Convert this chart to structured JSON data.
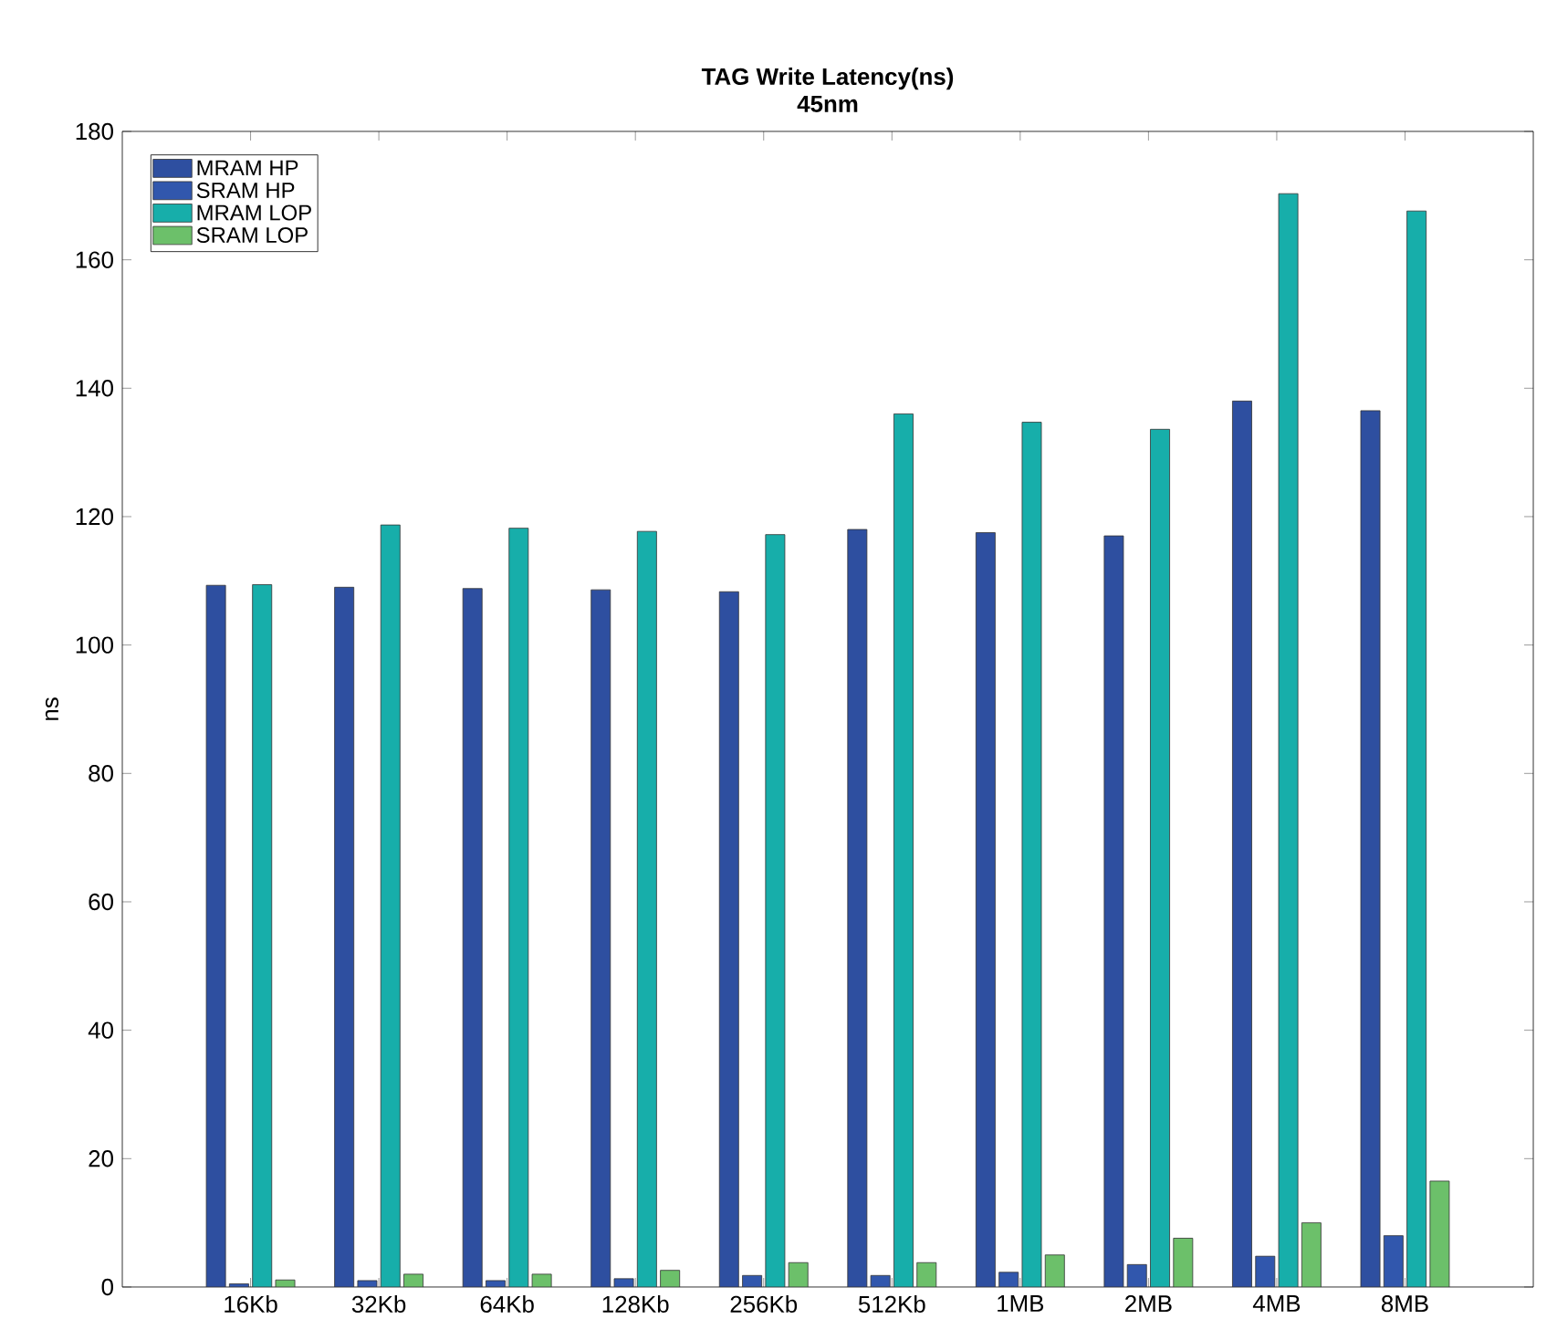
{
  "chart_data": {
    "type": "bar",
    "title": "TAG Write Latency(ns)",
    "subtitle": "45nm",
    "ylabel": "ns",
    "categories": [
      "16Kb",
      "32Kb",
      "64Kb",
      "128Kb",
      "256Kb",
      "512Kb",
      "1MB",
      "2MB",
      "4MB",
      "8MB"
    ],
    "series": [
      {
        "name": "MRAM HP",
        "color": "#2e4fa0",
        "values": [
          109.3,
          109,
          108.8,
          108.6,
          108.3,
          118,
          117.5,
          117,
          138,
          136.5
        ]
      },
      {
        "name": "SRAM HP",
        "color": "#3157ad",
        "values": [
          0.5,
          1,
          1,
          1.3,
          1.8,
          1.8,
          2.3,
          3.5,
          4.8,
          8
        ]
      },
      {
        "name": "MRAM LOP",
        "color": "#17aeaa",
        "values": [
          109.4,
          118.7,
          118.2,
          117.7,
          117.2,
          136,
          134.7,
          133.6,
          170.3,
          167.6
        ]
      },
      {
        "name": "SRAM LOP",
        "color": "#6cc06a",
        "values": [
          1.1,
          2,
          2,
          2.6,
          3.8,
          3.8,
          5,
          7.6,
          10,
          16.5
        ]
      }
    ],
    "ylim": [
      0,
      180
    ],
    "yticks": [
      0,
      20,
      40,
      60,
      80,
      100,
      120,
      140,
      160,
      180
    ],
    "legend": "top left"
  }
}
